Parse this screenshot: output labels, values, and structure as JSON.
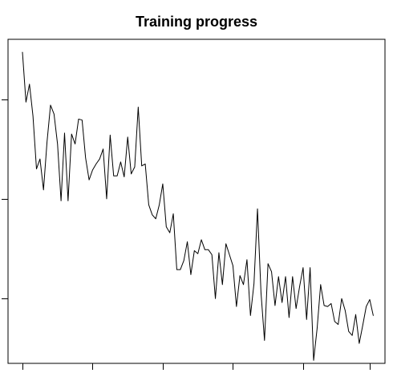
{
  "chart_data": {
    "type": "line",
    "title": "Training progress",
    "xlabel": "",
    "ylabel": "",
    "xlim": [
      1,
      100
    ],
    "ylim": [
      1.0,
      4.25
    ],
    "x_tick_values": [
      1,
      21,
      41,
      61,
      81,
      100
    ],
    "y_tick_values": [
      1.65,
      2.65,
      3.65
    ],
    "x_tick_labels": [],
    "y_tick_labels": [],
    "grid": false,
    "legend": "none",
    "series": [
      {
        "values": [
          4.12,
          3.62,
          3.8,
          3.48,
          2.95,
          3.05,
          2.74,
          3.22,
          3.59,
          3.5,
          3.2,
          2.63,
          3.31,
          2.63,
          3.3,
          3.2,
          3.45,
          3.44,
          3.06,
          2.84,
          2.94,
          3.0,
          3.05,
          3.15,
          2.65,
          3.29,
          2.88,
          2.88,
          3.02,
          2.87,
          3.27,
          2.9,
          2.97,
          3.57,
          2.98,
          3.0,
          2.59,
          2.49,
          2.45,
          2.59,
          2.8,
          2.37,
          2.31,
          2.5,
          1.94,
          1.94,
          2.03,
          2.22,
          1.89,
          2.13,
          2.1,
          2.24,
          2.14,
          2.14,
          2.09,
          1.65,
          2.11,
          1.79,
          2.2,
          2.09,
          1.98,
          1.57,
          1.88,
          1.79,
          2.04,
          1.48,
          1.8,
          2.55,
          1.71,
          1.23,
          2.0,
          1.92,
          1.58,
          1.87,
          1.61,
          1.87,
          1.46,
          1.87,
          1.55,
          1.77,
          1.96,
          1.44,
          1.96,
          1.03,
          1.35,
          1.79,
          1.58,
          1.57,
          1.6,
          1.42,
          1.39,
          1.65,
          1.53,
          1.32,
          1.28,
          1.49,
          1.2,
          1.38,
          1.57,
          1.64,
          1.48
        ]
      }
    ],
    "colors": {
      "line": "#000000",
      "frame": "#000000",
      "background": "#ffffff"
    }
  }
}
